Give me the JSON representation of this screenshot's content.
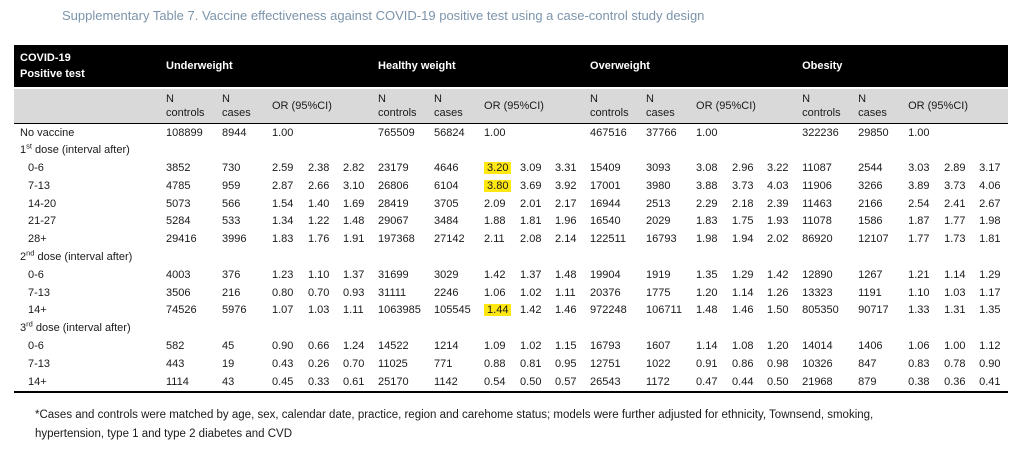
{
  "title": "Supplementary Table 7. Vaccine effectiveness against COVID-19 positive test using a case-control study design",
  "colors": {
    "title": "#7b94ab",
    "header_bg": "#000000",
    "header_fg": "#ffffff",
    "subheader_bg": "#d9d9d9",
    "highlight": "#ffe712",
    "text": "#1a1a1a"
  },
  "table": {
    "corner_line1": "COVID-19",
    "corner_line2": "Positive test",
    "groups": [
      "Underweight",
      "Healthy weight",
      "Overweight",
      "Obesity"
    ],
    "sub": {
      "n": "N",
      "controls": "controls",
      "cases": "cases",
      "or": "OR (95%CI)"
    },
    "rows": [
      {
        "label": "No vaccine",
        "cells": [
          [
            "108899",
            "8944",
            "1.00",
            "",
            ""
          ],
          [
            "765509",
            "56824",
            "1.00",
            "",
            ""
          ],
          [
            "467516",
            "37766",
            "1.00",
            "",
            ""
          ],
          [
            "322236",
            "29850",
            "1.00",
            "",
            ""
          ]
        ]
      },
      {
        "label_pre": "1",
        "label_sup": "st",
        "label_post": " dose (interval after)",
        "section": true
      },
      {
        "label": "0-6",
        "indent": true,
        "cells": [
          [
            "3852",
            "730",
            "2.59",
            "2.38",
            "2.82"
          ],
          [
            "23179",
            "4646",
            {
              "v": "3.20",
              "hl": true
            },
            "3.09",
            "3.31"
          ],
          [
            "15409",
            "3093",
            "3.08",
            "2.96",
            "3.22"
          ],
          [
            "11087",
            "2544",
            "3.03",
            "2.89",
            "3.17"
          ]
        ]
      },
      {
        "label": "7-13",
        "indent": true,
        "cells": [
          [
            "4785",
            "959",
            "2.87",
            "2.66",
            "3.10"
          ],
          [
            "26806",
            "6104",
            {
              "v": "3.80",
              "hl": true
            },
            "3.69",
            "3.92"
          ],
          [
            "17001",
            "3980",
            "3.88",
            "3.73",
            "4.03"
          ],
          [
            "11906",
            "3266",
            "3.89",
            "3.73",
            "4.06"
          ]
        ]
      },
      {
        "label": "14-20",
        "indent": true,
        "cells": [
          [
            "5073",
            "566",
            "1.54",
            "1.40",
            "1.69"
          ],
          [
            "28419",
            "3705",
            "2.09",
            "2.01",
            "2.17"
          ],
          [
            "16944",
            "2513",
            "2.29",
            "2.18",
            "2.39"
          ],
          [
            "11463",
            "2166",
            "2.54",
            "2.41",
            "2.67"
          ]
        ]
      },
      {
        "label": "21-27",
        "indent": true,
        "cells": [
          [
            "5284",
            "533",
            "1.34",
            "1.22",
            "1.48"
          ],
          [
            "29067",
            "3484",
            "1.88",
            "1.81",
            "1.96"
          ],
          [
            "16540",
            "2029",
            "1.83",
            "1.75",
            "1.93"
          ],
          [
            "11078",
            "1586",
            "1.87",
            "1.77",
            "1.98"
          ]
        ]
      },
      {
        "label": "28+",
        "indent": true,
        "cells": [
          [
            "29416",
            "3996",
            "1.83",
            "1.76",
            "1.91"
          ],
          [
            "197368",
            "27142",
            "2.11",
            "2.08",
            "2.14"
          ],
          [
            "122511",
            "16793",
            "1.98",
            "1.94",
            "2.02"
          ],
          [
            "86920",
            "12107",
            "1.77",
            "1.73",
            "1.81"
          ]
        ]
      },
      {
        "label_pre": "2",
        "label_sup": "nd",
        "label_post": " dose (interval after)",
        "section": true
      },
      {
        "label": "0-6",
        "indent": true,
        "cells": [
          [
            "4003",
            "376",
            "1.23",
            "1.10",
            "1.37"
          ],
          [
            "31699",
            "3029",
            "1.42",
            "1.37",
            "1.48"
          ],
          [
            "19904",
            "1919",
            "1.35",
            "1.29",
            "1.42"
          ],
          [
            "12890",
            "1267",
            "1.21",
            "1.14",
            "1.29"
          ]
        ]
      },
      {
        "label": "7-13",
        "indent": true,
        "cells": [
          [
            "3506",
            "216",
            "0.80",
            "0.70",
            "0.93"
          ],
          [
            "31111",
            "2246",
            "1.06",
            "1.02",
            "1.11"
          ],
          [
            "20376",
            "1775",
            "1.20",
            "1.14",
            "1.26"
          ],
          [
            "13323",
            "1191",
            "1.10",
            "1.03",
            "1.17"
          ]
        ]
      },
      {
        "label": "14+",
        "indent": true,
        "cells": [
          [
            "74526",
            "5976",
            "1.07",
            "1.03",
            "1.11"
          ],
          [
            "1063985",
            "105545",
            {
              "v": "1.44",
              "hl": true
            },
            "1.42",
            "1.46"
          ],
          [
            "972248",
            "106711",
            "1.48",
            "1.46",
            "1.50"
          ],
          [
            "805350",
            "90717",
            "1.33",
            "1.31",
            "1.35"
          ]
        ]
      },
      {
        "label_pre": "3",
        "label_sup": "rd",
        "label_post": " dose (interval after)",
        "section": true
      },
      {
        "label": "0-6",
        "indent": true,
        "cells": [
          [
            "582",
            "45",
            "0.90",
            "0.66",
            "1.24"
          ],
          [
            "14522",
            "1214",
            "1.09",
            "1.02",
            "1.15"
          ],
          [
            "16793",
            "1607",
            "1.14",
            "1.08",
            "1.20"
          ],
          [
            "14014",
            "1406",
            "1.06",
            "1.00",
            "1.12"
          ]
        ]
      },
      {
        "label": "7-13",
        "indent": true,
        "cells": [
          [
            "443",
            "19",
            "0.43",
            "0.26",
            "0.70"
          ],
          [
            "11025",
            "771",
            "0.88",
            "0.81",
            "0.95"
          ],
          [
            "12751",
            "1022",
            "0.91",
            "0.86",
            "0.98"
          ],
          [
            "10326",
            "847",
            "0.83",
            "0.78",
            "0.90"
          ]
        ]
      },
      {
        "label": "14+",
        "indent": true,
        "cells": [
          [
            "1114",
            "43",
            "0.45",
            "0.33",
            "0.61"
          ],
          [
            "25170",
            "1142",
            "0.54",
            "0.50",
            "0.57"
          ],
          [
            "26543",
            "1172",
            "0.47",
            "0.44",
            "0.50"
          ],
          [
            "21968",
            "879",
            "0.38",
            "0.36",
            "0.41"
          ]
        ]
      }
    ]
  },
  "footnote": "*Cases and controls were matched by age, sex, calendar date, practice, region and carehome status; models were further adjusted for ethnicity, Townsend, smoking, hypertension, type 1 and type 2 diabetes and CVD"
}
